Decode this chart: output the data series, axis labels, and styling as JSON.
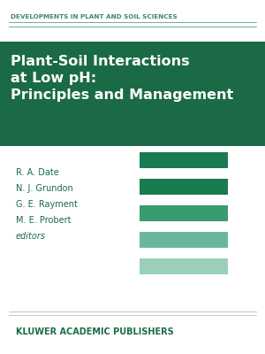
{
  "background_color": "#ffffff",
  "series_label": "DEVELOPMENTS IN PLANT AND SOIL SCIENCES",
  "series_label_color": "#3a8a6a",
  "series_label_fontsize": 5.2,
  "title_banner_color": "#1a6b45",
  "title_text": "Plant-Soil Interactions\nat Low pH:\nPrinciples and Management",
  "title_color": "#ffffff",
  "title_fontsize": 11.5,
  "authors": [
    "R. A. Date",
    "N. J. Grundon",
    "G. E. Rayment",
    "M. E. Probert",
    "editors"
  ],
  "authors_color": "#1a6b45",
  "authors_fontsize": 7.0,
  "publisher": "KLUWER ACADEMIC PUBLISHERS",
  "publisher_color": "#1a6b45",
  "publisher_fontsize": 7.0,
  "bar_colors": [
    "#1a7a50",
    "#1a7a50",
    "#3a9a70",
    "#6ab89a",
    "#9ad0b8"
  ],
  "thin_line_color": "#3a8a6a"
}
